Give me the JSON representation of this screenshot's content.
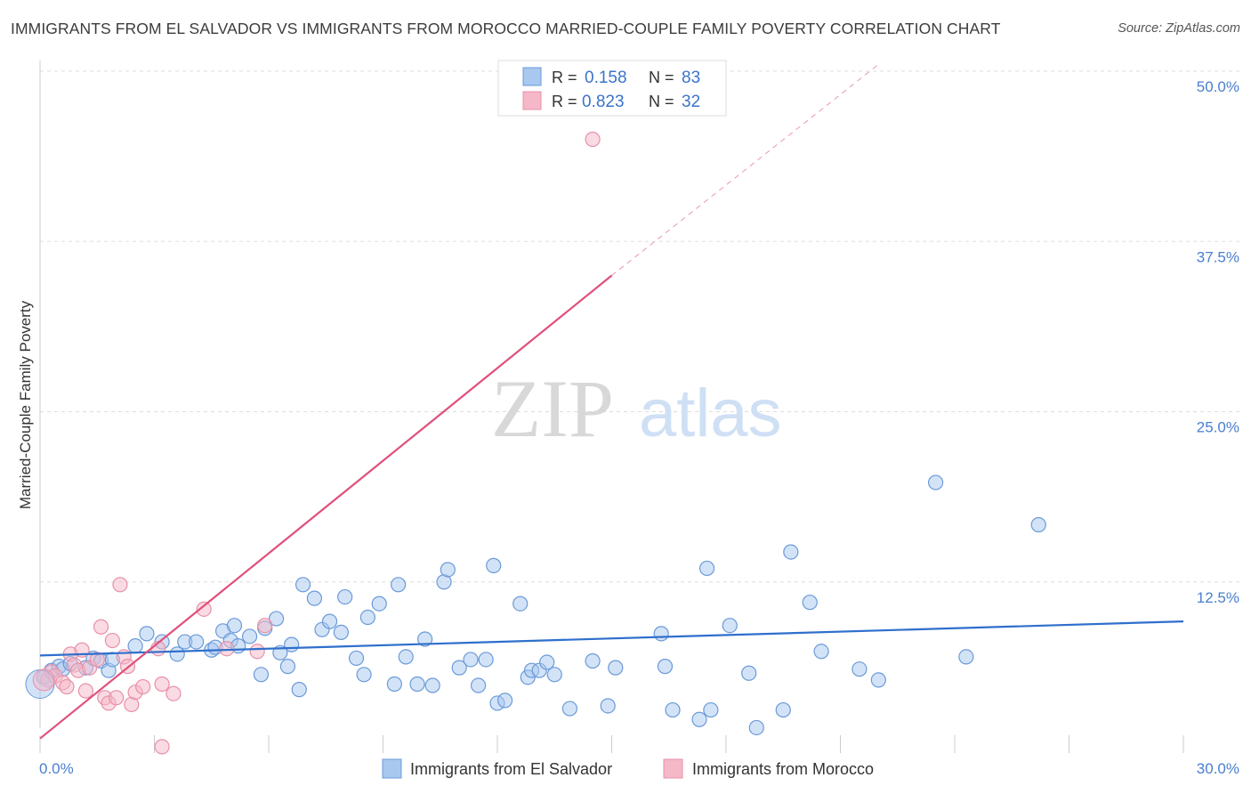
{
  "title": "IMMIGRANTS FROM EL SALVADOR VS IMMIGRANTS FROM MOROCCO MARRIED-COUPLE FAMILY POVERTY CORRELATION CHART",
  "source": "Source: ZipAtlas.com",
  "watermark": {
    "zip": "ZIP",
    "atlas": "atlas"
  },
  "legend_top": {
    "r_label": "R =",
    "n_label": "N =",
    "rows": [
      {
        "r": "0.158",
        "n": "83",
        "color": "#a8c8f0"
      },
      {
        "r": "0.823",
        "n": "32",
        "color": "#f5b8c8"
      }
    ]
  },
  "legend_bottom": [
    {
      "label": "Immigrants from El Salvador",
      "color": "#a8c8f0"
    },
    {
      "label": "Immigrants from Morocco",
      "color": "#f5b8c8"
    }
  ],
  "chart_data": {
    "type": "scatter",
    "title": "IMMIGRANTS FROM EL SALVADOR VS IMMIGRANTS FROM MOROCCO MARRIED-COUPLE FAMILY POVERTY CORRELATION CHART",
    "xlabel": "",
    "ylabel": "Married-Couple Family Poverty",
    "xlim": [
      0,
      30
    ],
    "ylim": [
      0,
      50
    ],
    "x_tick_labels": [
      "0.0%",
      "30.0%"
    ],
    "y_tick_labels": [
      "12.5%",
      "25.0%",
      "37.5%",
      "50.0%"
    ],
    "y_ticks": [
      12.5,
      25.0,
      37.5,
      50.0
    ],
    "grid": true,
    "legend_position": "top-center",
    "series": [
      {
        "name": "Immigrants from El Salvador",
        "color": "#a8c8f0",
        "stroke": "#6a9ad8",
        "trend": {
          "x": [
            0,
            30
          ],
          "y": [
            7.1,
            9.6
          ],
          "color": "#2f6fcc"
        },
        "points": [
          [
            0.1,
            5.5
          ],
          [
            0.3,
            6.0
          ],
          [
            0.5,
            6.3
          ],
          [
            0.6,
            6.1
          ],
          [
            0.8,
            6.5
          ],
          [
            1.2,
            6.2
          ],
          [
            1.4,
            6.9
          ],
          [
            1.6,
            6.7
          ],
          [
            1.8,
            6.0
          ],
          [
            1.9,
            6.8
          ],
          [
            2.5,
            7.8
          ],
          [
            2.8,
            8.7
          ],
          [
            3.2,
            8.1
          ],
          [
            3.6,
            7.2
          ],
          [
            3.8,
            8.1
          ],
          [
            4.1,
            8.1
          ],
          [
            4.5,
            7.5
          ],
          [
            4.6,
            7.7
          ],
          [
            4.8,
            8.9
          ],
          [
            5.0,
            8.2
          ],
          [
            5.2,
            7.8
          ],
          [
            5.1,
            9.3
          ],
          [
            5.5,
            8.5
          ],
          [
            5.8,
            5.7
          ],
          [
            5.9,
            9.1
          ],
          [
            6.2,
            9.8
          ],
          [
            6.3,
            7.3
          ],
          [
            6.5,
            6.3
          ],
          [
            6.6,
            7.9
          ],
          [
            6.8,
            4.6
          ],
          [
            6.9,
            12.3
          ],
          [
            7.2,
            11.3
          ],
          [
            7.4,
            9.0
          ],
          [
            7.6,
            9.6
          ],
          [
            7.9,
            8.8
          ],
          [
            8.0,
            11.4
          ],
          [
            8.3,
            6.9
          ],
          [
            8.5,
            5.7
          ],
          [
            8.6,
            9.9
          ],
          [
            8.9,
            10.9
          ],
          [
            9.3,
            5.0
          ],
          [
            9.4,
            12.3
          ],
          [
            9.6,
            7.0
          ],
          [
            9.9,
            5.0
          ],
          [
            10.1,
            8.3
          ],
          [
            10.3,
            4.9
          ],
          [
            10.6,
            12.5
          ],
          [
            10.7,
            13.4
          ],
          [
            11.0,
            6.2
          ],
          [
            11.3,
            6.8
          ],
          [
            11.5,
            4.9
          ],
          [
            11.7,
            6.8
          ],
          [
            11.9,
            13.7
          ],
          [
            12.0,
            3.6
          ],
          [
            12.2,
            3.8
          ],
          [
            12.6,
            10.9
          ],
          [
            12.8,
            5.5
          ],
          [
            12.9,
            6.0
          ],
          [
            13.1,
            6.0
          ],
          [
            13.3,
            6.6
          ],
          [
            13.5,
            5.7
          ],
          [
            13.9,
            3.2
          ],
          [
            14.5,
            6.7
          ],
          [
            14.9,
            3.4
          ],
          [
            15.1,
            6.2
          ],
          [
            16.3,
            8.7
          ],
          [
            16.4,
            6.3
          ],
          [
            16.6,
            3.1
          ],
          [
            17.3,
            2.4
          ],
          [
            17.6,
            3.1
          ],
          [
            17.5,
            13.5
          ],
          [
            18.1,
            9.3
          ],
          [
            18.6,
            5.8
          ],
          [
            18.8,
            1.8
          ],
          [
            19.5,
            3.1
          ],
          [
            19.7,
            14.7
          ],
          [
            20.2,
            11.0
          ],
          [
            20.5,
            7.4
          ],
          [
            23.5,
            19.8
          ],
          [
            26.2,
            16.7
          ],
          [
            24.3,
            7.0
          ],
          [
            21.5,
            6.1
          ],
          [
            22.0,
            5.3
          ]
        ]
      },
      {
        "name": "Immigrants from Morocco",
        "color": "#f5b8c8",
        "stroke": "#e890a8",
        "trend": {
          "x": [
            0,
            15.0
          ],
          "y": [
            1.0,
            35.0
          ],
          "color": "#e0507a",
          "dashed_to": [
            22.0,
            50.5
          ]
        },
        "points": [
          [
            0.2,
            5.3
          ],
          [
            0.3,
            5.9
          ],
          [
            0.4,
            5.6
          ],
          [
            0.6,
            5.1
          ],
          [
            0.7,
            4.8
          ],
          [
            0.8,
            7.2
          ],
          [
            0.9,
            6.4
          ],
          [
            1.0,
            6.0
          ],
          [
            1.1,
            7.5
          ],
          [
            1.2,
            4.5
          ],
          [
            1.3,
            6.2
          ],
          [
            1.5,
            6.8
          ],
          [
            1.6,
            9.2
          ],
          [
            1.7,
            4.0
          ],
          [
            1.8,
            3.6
          ],
          [
            1.9,
            8.2
          ],
          [
            2.0,
            4.0
          ],
          [
            2.1,
            12.3
          ],
          [
            2.2,
            7.0
          ],
          [
            2.3,
            6.3
          ],
          [
            2.4,
            3.5
          ],
          [
            2.5,
            4.4
          ],
          [
            2.7,
            4.8
          ],
          [
            3.1,
            7.6
          ],
          [
            3.2,
            5.0
          ],
          [
            3.5,
            4.3
          ],
          [
            4.3,
            10.5
          ],
          [
            4.9,
            7.6
          ],
          [
            5.7,
            7.4
          ],
          [
            5.9,
            9.3
          ],
          [
            3.2,
            0.4
          ],
          [
            14.5,
            45.0
          ]
        ]
      }
    ]
  }
}
